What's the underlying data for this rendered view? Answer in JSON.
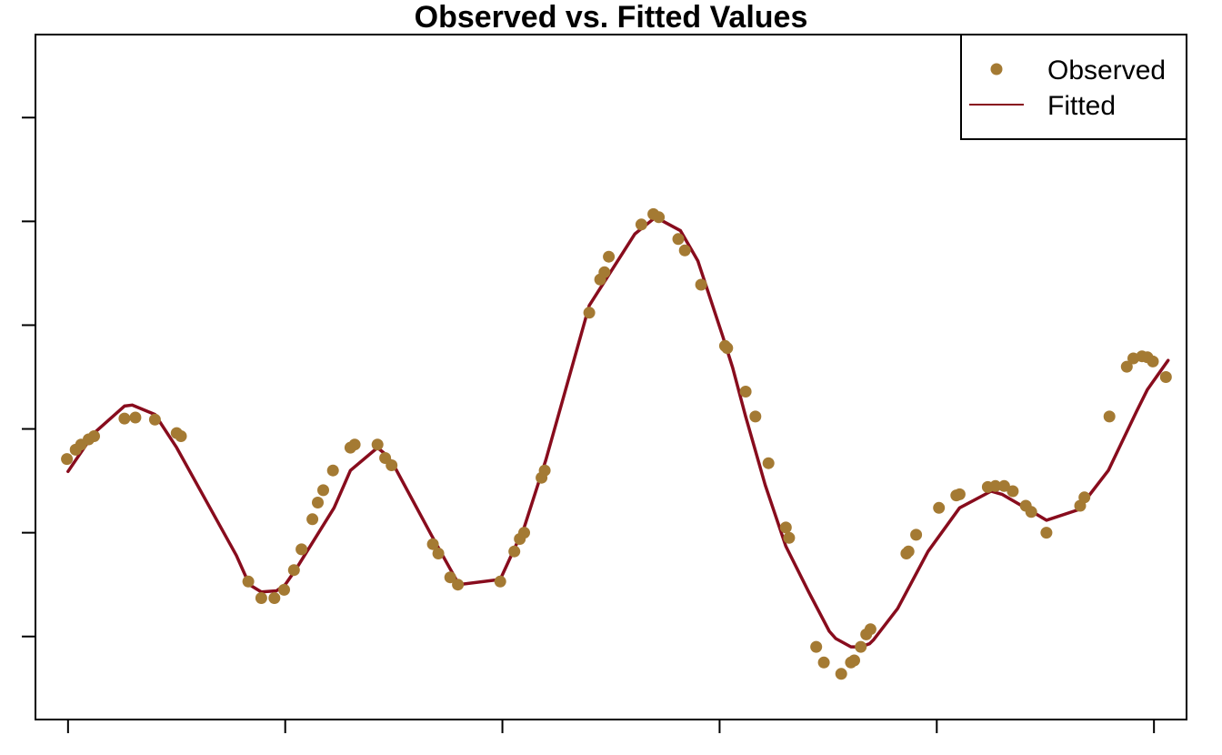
{
  "chart_data": {
    "type": "scatter",
    "title": "Observed vs. Fitted Values",
    "xlabel": "",
    "ylabel": "",
    "xlim": [
      0.5,
      53.5
    ],
    "ylim": [
      -2.8,
      3.8
    ],
    "x_ticks": [
      2,
      12,
      22,
      32,
      42,
      52
    ],
    "y_ticks": [
      -2,
      -1,
      0,
      1,
      2,
      3
    ],
    "grid": false,
    "legend_position": "top-right",
    "colors": {
      "observed": "#A47A33",
      "fitted": "#880C1D"
    },
    "series": [
      {
        "name": "Observed",
        "kind": "points",
        "points": [
          [
            1.95,
            -0.29
          ],
          [
            2.35,
            -0.2
          ],
          [
            2.6,
            -0.15
          ],
          [
            2.95,
            -0.1
          ],
          [
            3.2,
            -0.07
          ],
          [
            4.6,
            0.1
          ],
          [
            5.1,
            0.11
          ],
          [
            6.0,
            0.09
          ],
          [
            7.0,
            -0.04
          ],
          [
            7.2,
            -0.07
          ],
          [
            10.3,
            -1.47
          ],
          [
            10.9,
            -1.63
          ],
          [
            11.5,
            -1.63
          ],
          [
            11.95,
            -1.55
          ],
          [
            12.4,
            -1.36
          ],
          [
            12.75,
            -1.16
          ],
          [
            13.25,
            -0.87
          ],
          [
            13.5,
            -0.71
          ],
          [
            13.75,
            -0.59
          ],
          [
            14.2,
            -0.4
          ],
          [
            15.0,
            -0.18
          ],
          [
            15.2,
            -0.15
          ],
          [
            16.25,
            -0.15
          ],
          [
            16.6,
            -0.28
          ],
          [
            16.9,
            -0.35
          ],
          [
            18.8,
            -1.11
          ],
          [
            19.05,
            -1.2
          ],
          [
            19.6,
            -1.43
          ],
          [
            19.95,
            -1.5
          ],
          [
            21.9,
            -1.47
          ],
          [
            22.55,
            -1.18
          ],
          [
            22.8,
            -1.06
          ],
          [
            23.0,
            -1.0
          ],
          [
            23.8,
            -0.47
          ],
          [
            23.95,
            -0.4
          ],
          [
            26.0,
            1.12
          ],
          [
            26.5,
            1.44
          ],
          [
            26.7,
            1.51
          ],
          [
            26.9,
            1.66
          ],
          [
            28.4,
            1.97
          ],
          [
            28.95,
            2.07
          ],
          [
            29.2,
            2.04
          ],
          [
            30.1,
            1.83
          ],
          [
            30.4,
            1.72
          ],
          [
            31.15,
            1.39
          ],
          [
            32.25,
            0.8
          ],
          [
            32.35,
            0.78
          ],
          [
            33.2,
            0.36
          ],
          [
            33.65,
            0.12
          ],
          [
            34.25,
            -0.33
          ],
          [
            35.05,
            -0.95
          ],
          [
            35.2,
            -1.05
          ],
          [
            36.45,
            -2.1
          ],
          [
            36.8,
            -2.25
          ],
          [
            37.6,
            -2.36
          ],
          [
            38.05,
            -2.25
          ],
          [
            38.2,
            -2.23
          ],
          [
            38.5,
            -2.1
          ],
          [
            38.75,
            -1.98
          ],
          [
            38.95,
            -1.93
          ],
          [
            40.6,
            -1.2
          ],
          [
            40.7,
            -1.18
          ],
          [
            41.05,
            -1.02
          ],
          [
            42.1,
            -0.76
          ],
          [
            42.9,
            -0.64
          ],
          [
            43.05,
            -0.63
          ],
          [
            44.35,
            -0.56
          ],
          [
            44.7,
            -0.55
          ],
          [
            45.1,
            -0.55
          ],
          [
            45.5,
            -0.6
          ],
          [
            46.1,
            -0.74
          ],
          [
            46.35,
            -0.8
          ],
          [
            47.05,
            -1.0
          ],
          [
            48.6,
            -0.74
          ],
          [
            48.8,
            -0.66
          ],
          [
            49.95,
            0.12
          ],
          [
            50.75,
            0.6
          ],
          [
            51.05,
            0.68
          ],
          [
            51.45,
            0.7
          ],
          [
            51.7,
            0.69
          ],
          [
            51.95,
            0.65
          ],
          [
            52.55,
            0.5
          ]
        ]
      },
      {
        "name": "Fitted",
        "kind": "line",
        "points": [
          [
            2.0,
            -0.41
          ],
          [
            3.2,
            -0.04
          ],
          [
            4.6,
            0.22
          ],
          [
            4.95,
            0.23
          ],
          [
            6.0,
            0.14
          ],
          [
            7.0,
            -0.18
          ],
          [
            9.75,
            -1.22
          ],
          [
            10.35,
            -1.5
          ],
          [
            10.9,
            -1.57
          ],
          [
            11.6,
            -1.56
          ],
          [
            12.0,
            -1.5
          ],
          [
            12.5,
            -1.35
          ],
          [
            14.25,
            -0.76
          ],
          [
            15.0,
            -0.4
          ],
          [
            16.25,
            -0.18
          ],
          [
            16.65,
            -0.25
          ],
          [
            17.0,
            -0.35
          ],
          [
            18.75,
            -1.03
          ],
          [
            19.25,
            -1.22
          ],
          [
            20.0,
            -1.5
          ],
          [
            21.9,
            -1.45
          ],
          [
            22.45,
            -1.2
          ],
          [
            23.0,
            -0.95
          ],
          [
            24.0,
            -0.3
          ],
          [
            26.0,
            1.19
          ],
          [
            28.1,
            1.88
          ],
          [
            29.05,
            2.04
          ],
          [
            30.2,
            1.91
          ],
          [
            31.0,
            1.62
          ],
          [
            32.15,
            0.89
          ],
          [
            32.6,
            0.59
          ],
          [
            33.2,
            0.12
          ],
          [
            34.1,
            -0.54
          ],
          [
            35.05,
            -1.13
          ],
          [
            36.1,
            -1.57
          ],
          [
            37.05,
            -1.95
          ],
          [
            37.35,
            -2.02
          ],
          [
            38.05,
            -2.1
          ],
          [
            38.5,
            -2.1
          ],
          [
            38.9,
            -2.07
          ],
          [
            39.1,
            -2.03
          ],
          [
            40.2,
            -1.73
          ],
          [
            41.6,
            -1.18
          ],
          [
            43.05,
            -0.76
          ],
          [
            44.5,
            -0.6
          ],
          [
            45.0,
            -0.63
          ],
          [
            46.65,
            -0.83
          ],
          [
            47.05,
            -0.88
          ],
          [
            48.5,
            -0.78
          ],
          [
            49.9,
            -0.4
          ],
          [
            51.2,
            0.17
          ],
          [
            51.7,
            0.38
          ],
          [
            52.65,
            0.66
          ]
        ]
      }
    ]
  },
  "legend": {
    "observed_label": "Observed",
    "fitted_label": "Fitted"
  }
}
